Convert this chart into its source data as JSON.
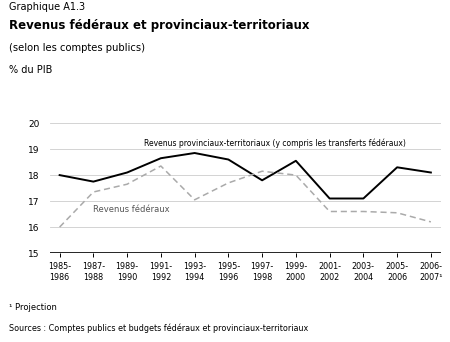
{
  "title_line1": "Graphique A1.3",
  "title_line2": "Revenus fédéraux et provinciaux-territoriaux",
  "title_line3": "(selon les comptes publics)",
  "ylabel": "% du PIB",
  "xlabel_note": "¹ Projection",
  "source_note": "Sources : Comptes publics et budgets fédéraux et provinciaux-territoriaux",
  "x_labels": [
    "1985-\n1986",
    "1987-\n1988",
    "1989-\n1990",
    "1991-\n1992",
    "1993-\n1994",
    "1995-\n1996",
    "1997-\n1998",
    "1999-\n2000",
    "2001-\n2002",
    "2003-\n2004",
    "2005-\n2006",
    "2006-\n2007¹"
  ],
  "prov_y": [
    18.0,
    17.75,
    18.1,
    18.65,
    18.85,
    18.6,
    17.8,
    18.55,
    17.1,
    17.1,
    18.3,
    18.1
  ],
  "fed_y": [
    16.0,
    17.35,
    17.65,
    18.35,
    17.05,
    17.7,
    18.15,
    18.0,
    16.6,
    16.6,
    16.55,
    16.2
  ],
  "ylim": [
    15,
    20
  ],
  "yticks": [
    15,
    16,
    17,
    18,
    19,
    20
  ],
  "provincial_color": "#000000",
  "federal_color": "#aaaaaa",
  "grid_color": "#cccccc",
  "background_color": "#ffffff",
  "label_prov": "Revenus provinciaux-territoriaux (y compris les transferts fédéraux)",
  "label_fed": "Revenus fédéraux"
}
